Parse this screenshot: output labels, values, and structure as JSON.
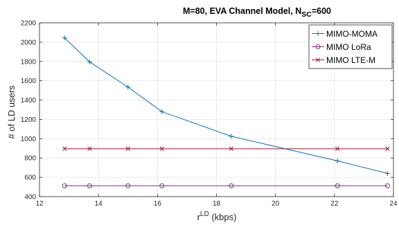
{
  "chart_data": {
    "type": "line",
    "title": "M=80, EVA Channel Model, N",
    "title_sub": "SC",
    "title_tail": "=600",
    "xlabel": "r",
    "xlabel_sup": "LD",
    "xlabel_tail": " (kbps)",
    "ylabel": "# of LD users",
    "xlim": [
      12,
      24
    ],
    "ylim": [
      400,
      2200
    ],
    "xticks": [
      12,
      14,
      16,
      18,
      20,
      22,
      24
    ],
    "yticks": [
      400,
      600,
      800,
      1000,
      1200,
      1400,
      1600,
      1800,
      2000,
      2200
    ],
    "grid": true,
    "legend_position": "top-right",
    "series": [
      {
        "name": "MIMO-MOMA",
        "color": "#0072BD",
        "marker": "plus",
        "x": [
          12.85,
          13.7,
          15.0,
          16.15,
          18.5,
          22.1,
          23.8
        ],
        "y": [
          2045,
          1795,
          1535,
          1280,
          1025,
          770,
          640
        ]
      },
      {
        "name": "MIMO LoRa",
        "color": "#7E2F8E",
        "marker": "circle",
        "x": [
          12.85,
          13.7,
          15.0,
          16.15,
          18.5,
          22.1,
          23.8
        ],
        "y": [
          512,
          512,
          512,
          512,
          512,
          512,
          512
        ]
      },
      {
        "name": "MIMO LTE-M",
        "color": "#A2142F",
        "marker": "x",
        "x": [
          12.85,
          13.7,
          15.0,
          16.15,
          18.5,
          22.1,
          23.8
        ],
        "y": [
          896,
          896,
          896,
          896,
          896,
          896,
          896
        ]
      }
    ]
  }
}
